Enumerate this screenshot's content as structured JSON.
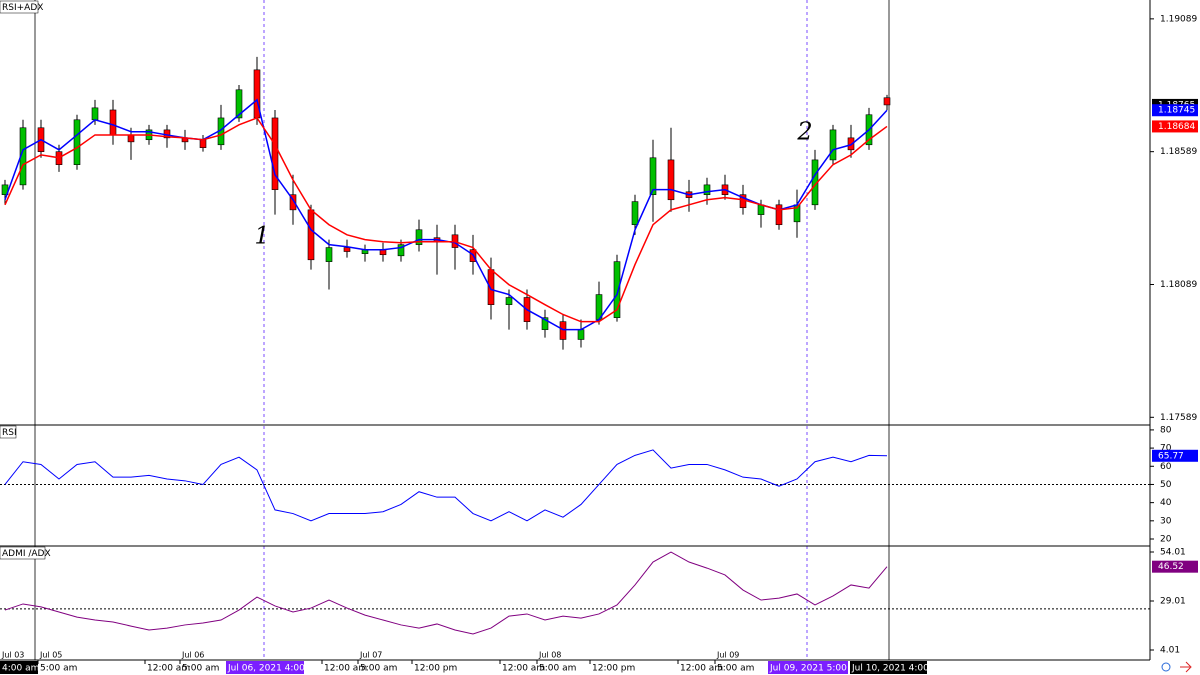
{
  "chart_data": [
    {
      "type": "candlestick",
      "title": "RSI+ADX",
      "up_color": "#00c000",
      "down_color": "#ff0000",
      "candles": [
        [
          1.18427,
          1.18483,
          1.18389,
          1.18464
        ],
        [
          1.18464,
          1.18709,
          1.18446,
          1.18679
        ],
        [
          1.18679,
          1.18709,
          1.18566,
          1.18589
        ],
        [
          1.18589,
          1.18615,
          1.18513,
          1.1854
        ],
        [
          1.1854,
          1.18728,
          1.18521,
          1.18709
        ],
        [
          1.18709,
          1.18784,
          1.1869,
          1.18754
        ],
        [
          1.18746,
          1.18784,
          1.18615,
          1.18652
        ],
        [
          1.18652,
          1.18679,
          1.18558,
          1.18626
        ],
        [
          1.18634,
          1.1869,
          1.18615,
          1.18671
        ],
        [
          1.18671,
          1.1869,
          1.18604,
          1.18641
        ],
        [
          1.18641,
          1.18671,
          1.18596,
          1.18626
        ],
        [
          1.18634,
          1.18652,
          1.18589,
          1.18604
        ],
        [
          1.18615,
          1.18765,
          1.18596,
          1.18716
        ],
        [
          1.18716,
          1.1884,
          1.18701,
          1.18822
        ],
        [
          1.18897,
          1.18946,
          1.1869,
          1.18716
        ],
        [
          1.18716,
          1.18746,
          1.18352,
          1.18446
        ],
        [
          1.18427,
          1.18502,
          1.18314,
          1.1837
        ],
        [
          1.1837,
          1.18389,
          1.18145,
          1.18182
        ],
        [
          1.18175,
          1.18258,
          1.1807,
          1.18228
        ],
        [
          1.18228,
          1.18258,
          1.1819,
          1.18213
        ],
        [
          1.18205,
          1.18239,
          1.18175,
          1.1822
        ],
        [
          1.1822,
          1.18246,
          1.18175,
          1.18201
        ],
        [
          1.18197,
          1.18258,
          1.18175,
          1.18239
        ],
        [
          1.18239,
          1.18333,
          1.18213,
          1.18295
        ],
        [
          1.18265,
          1.18314,
          1.18126,
          1.1825
        ],
        [
          1.18276,
          1.18314,
          1.18145,
          1.18228
        ],
        [
          1.1822,
          1.18276,
          1.18126,
          1.18175
        ],
        [
          1.18145,
          1.1819,
          1.17957,
          1.18013
        ],
        [
          1.18013,
          1.1807,
          1.17919,
          1.1804
        ],
        [
          1.1804,
          1.1807,
          1.17919,
          1.17949
        ],
        [
          1.17919,
          1.17994,
          1.17889,
          1.17964
        ],
        [
          1.17949,
          1.17976,
          1.17844,
          1.17882
        ],
        [
          1.17882,
          1.17957,
          1.17852,
          1.17919
        ],
        [
          1.17957,
          1.181,
          1.17938,
          1.18051
        ],
        [
          1.17964,
          1.18201,
          1.17949,
          1.18175
        ],
        [
          1.18314,
          1.18427,
          1.18276,
          1.18401
        ],
        [
          1.18427,
          1.18634,
          1.18325,
          1.18566
        ],
        [
          1.18558,
          1.18679,
          1.18363,
          1.18408
        ],
        [
          1.18438,
          1.18483,
          1.18363,
          1.18416
        ],
        [
          1.18427,
          1.18491,
          1.18389,
          1.18464
        ],
        [
          1.18464,
          1.18502,
          1.18408,
          1.18427
        ],
        [
          1.18427,
          1.18464,
          1.18352,
          1.18378
        ],
        [
          1.18352,
          1.18408,
          1.18303,
          1.18389
        ],
        [
          1.18389,
          1.18408,
          1.18295,
          1.18314
        ],
        [
          1.18325,
          1.18446,
          1.18265,
          1.18389
        ],
        [
          1.18389,
          1.18596,
          1.1837,
          1.18558
        ],
        [
          1.18558,
          1.1869,
          1.1854,
          1.18671
        ],
        [
          1.18641,
          1.1869,
          1.18566,
          1.18596
        ],
        [
          1.18615,
          1.18754,
          1.18596,
          1.18728
        ],
        [
          1.18792,
          1.18803,
          1.18746,
          1.18765
        ]
      ],
      "series": [
        {
          "color": "#0000ff",
          "values": [
            1.18408,
            1.18596,
            1.18634,
            1.18596,
            1.18652,
            1.18709,
            1.1869,
            1.18664,
            1.18664,
            1.18652,
            1.18641,
            1.18634,
            1.18671,
            1.18728,
            1.18784,
            1.18502,
            1.18408,
            1.18295,
            1.18239,
            1.18231,
            1.1822,
            1.1822,
            1.18228,
            1.18258,
            1.18258,
            1.18246,
            1.18201,
            1.1807,
            1.18051,
            1.17994,
            1.17957,
            1.17919,
            1.17919,
            1.17957,
            1.18051,
            1.18295,
            1.18446,
            1.18446,
            1.18427,
            1.18438,
            1.18446,
            1.18416,
            1.18389,
            1.1837,
            1.18389,
            1.18502,
            1.18596,
            1.18615,
            1.18671,
            1.18745
          ]
        },
        {
          "color": "#ff0000",
          "values": [
            1.18389,
            1.1854,
            1.18577,
            1.18566,
            1.18604,
            1.18652,
            1.18652,
            1.18652,
            1.18652,
            1.18645,
            1.18641,
            1.18634,
            1.18652,
            1.1869,
            1.18716,
            1.18615,
            1.18483,
            1.1837,
            1.18314,
            1.18276,
            1.18258,
            1.1825,
            1.18246,
            1.1825,
            1.1825,
            1.1825,
            1.18228,
            1.18145,
            1.18088,
            1.18051,
            1.18013,
            1.17976,
            1.17949,
            1.17949,
            1.17994,
            1.18164,
            1.18314,
            1.1837,
            1.18389,
            1.18408,
            1.18416,
            1.18408,
            1.18389,
            1.1837,
            1.18378,
            1.18464,
            1.1854,
            1.18577,
            1.18634,
            1.18684
          ]
        }
      ],
      "ylim": [
        1.1756,
        1.1916
      ],
      "yticks": [
        1.17589,
        1.18089,
        1.18589,
        1.19089
      ],
      "annotations": [
        "1",
        "2"
      ]
    },
    {
      "type": "line",
      "title": "RSI",
      "series": [
        {
          "color": "#0000ff",
          "values": [
            50,
            62.5,
            61,
            53,
            61,
            62.5,
            54,
            54,
            55,
            53,
            52,
            50,
            61,
            65,
            58,
            36,
            34,
            30,
            34,
            34,
            34,
            35,
            39,
            46,
            43,
            43,
            34,
            30,
            35,
            30,
            36,
            32,
            39,
            50,
            61,
            66,
            69,
            59,
            61,
            61,
            58,
            54,
            53,
            49,
            53,
            62.5,
            65,
            62.5,
            66,
            65.77
          ]
        }
      ],
      "ylim": [
        16.7,
        82.7
      ],
      "yticks": [
        20,
        30,
        40,
        50,
        60,
        70,
        80
      ],
      "hline": 50
    },
    {
      "type": "line",
      "title": "ADMI /ADX",
      "series": [
        {
          "color": "#800080",
          "values": [
            24.4,
            27.5,
            26,
            23.4,
            20.8,
            19.3,
            18.3,
            16.2,
            14.2,
            15.2,
            16.8,
            17.8,
            19.3,
            24.4,
            31,
            26.5,
            23.4,
            25.4,
            29.5,
            25.4,
            21.8,
            19.3,
            16.8,
            15.2,
            17.3,
            14.2,
            12.2,
            15.2,
            21.3,
            22.4,
            19.3,
            21.3,
            20.3,
            22.4,
            27,
            37.2,
            48.9,
            54,
            48.9,
            45.8,
            42.3,
            34.6,
            29.5,
            30.5,
            32.6,
            27,
            31.6,
            37.2,
            35.6,
            46.52
          ]
        }
      ],
      "ylim": [
        -1.09,
        57.07
      ],
      "yticks": [
        4.01,
        29.01,
        54.01
      ],
      "hline": 25
    }
  ],
  "time_axis": {
    "dates": [
      "Jul 03",
      "Jul 05",
      "Jul 06",
      "Jul 07",
      "Jul 08",
      "Jul 09"
    ],
    "times": [
      "4:00 am",
      "5:00 am",
      "12:00 am",
      "5:00 am",
      "Jul 06, 2021 4:00 pm",
      "12:00 am",
      "5:00 am",
      "12:00 pm",
      "12:00 am",
      "5:00 am",
      "12:00 pm",
      "12:00 am",
      "5:00 am",
      "Jul 09, 2021 5:00 pm",
      "Jul 10, 2021 4:00 am"
    ]
  }
}
